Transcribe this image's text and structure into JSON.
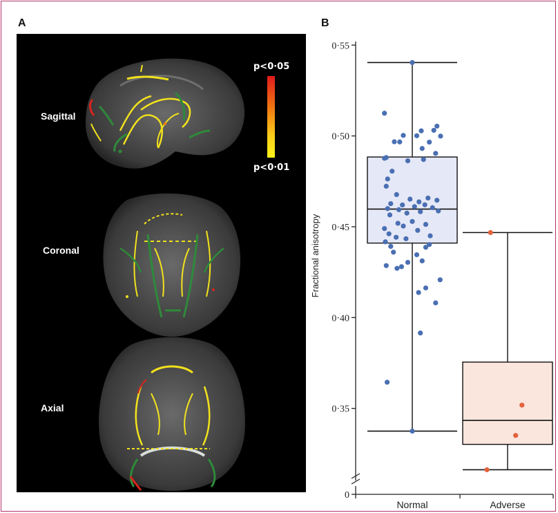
{
  "figure": {
    "panel_a_letter": "A",
    "panel_b_letter": "B",
    "frame_color": "#b4336b"
  },
  "brain_panel": {
    "views": [
      "Sagittal",
      "Coronal",
      "Axial"
    ],
    "colorbar_top_label": "p<0·05",
    "colorbar_bottom_label": "p<0·01",
    "colorbar_colors": [
      "#e01b1b",
      "#f07a12",
      "#ffd21a",
      "#fff21a"
    ],
    "overlay_colors": {
      "significant": "#f2e21c",
      "skeleton": "#2e8a3a",
      "highly_significant": "#d8241c"
    }
  },
  "chart_data": {
    "type": "box",
    "title": "",
    "xlabel": "",
    "ylabel": "Fractional anisotropy",
    "ylim": [
      0.316,
      0.552
    ],
    "axis_break": true,
    "yticks": [
      {
        "value": 0.35,
        "label": "0·35"
      },
      {
        "value": 0.4,
        "label": "0·40"
      },
      {
        "value": 0.45,
        "label": "0·45"
      },
      {
        "value": 0.5,
        "label": "0·50"
      },
      {
        "value": 0.55,
        "label": "0·55"
      }
    ],
    "zero_label": "0",
    "categories": [
      "Normal",
      "Adverse"
    ],
    "groups": [
      {
        "category": "Normal",
        "box_fill": "#e5e8f6",
        "point_color": "#4a6fb3",
        "whisker_low": 0.3375,
        "q1": 0.441,
        "median": 0.4597,
        "q3": 0.4884,
        "whisker_high": 0.5404,
        "points": [
          0.5404,
          0.5125,
          0.5054,
          0.5031,
          0.5028,
          0.5003,
          0.4999,
          0.5001,
          0.4968,
          0.4967,
          0.4966,
          0.4931,
          0.4904,
          0.4881,
          0.4877,
          0.487,
          0.4863,
          0.4806,
          0.4763,
          0.4723,
          0.4677,
          0.4658,
          0.4652,
          0.4646,
          0.4637,
          0.4627,
          0.4621,
          0.462,
          0.4611,
          0.4605,
          0.46,
          0.4594,
          0.4587,
          0.4583,
          0.4575,
          0.4565,
          0.4529,
          0.4519,
          0.4513,
          0.4504,
          0.449,
          0.448,
          0.4461,
          0.445,
          0.4442,
          0.4434,
          0.4417,
          0.4402,
          0.4392,
          0.4387,
          0.436,
          0.4346,
          0.4312,
          0.4304,
          0.4286,
          0.428,
          0.4271,
          0.4208,
          0.4163,
          0.4138,
          0.4081,
          0.3915,
          0.3644,
          0.3375
        ],
        "jitter": [
          0.0,
          -0.62,
          0.55,
          0.48,
          0.2,
          -0.2,
          0.63,
          0.1,
          -0.4,
          -0.28,
          0.38,
          0.22,
          0.52,
          -0.58,
          -0.62,
          0.25,
          -0.1,
          -0.45,
          -0.55,
          -0.58,
          -0.35,
          0.35,
          -0.05,
          0.55,
          0.15,
          -0.48,
          0.28,
          -0.22,
          0.05,
          0.45,
          -0.55,
          -0.3,
          0.58,
          0.18,
          -0.12,
          -0.5,
          0.0,
          -0.32,
          0.3,
          -0.2,
          -0.62,
          0.12,
          -0.52,
          0.4,
          -0.36,
          -0.14,
          -0.6,
          0.38,
          -0.48,
          0.3,
          -0.42,
          0.1,
          0.22,
          -0.1,
          -0.58,
          -0.24,
          -0.34,
          0.62,
          0.3,
          0.14,
          0.52,
          0.18,
          -0.56,
          0.0
        ]
      },
      {
        "category": "Adverse",
        "box_fill": "#fbe6de",
        "point_color": "#e4623d",
        "whisker_low": 0.3162,
        "q1": 0.3302,
        "median": 0.3434,
        "q3": 0.3755,
        "whisker_high": 0.4468,
        "points": [
          0.4468,
          0.3518,
          0.3351,
          0.3162
        ],
        "jitter": [
          -0.38,
          0.32,
          0.18,
          -0.46
        ]
      }
    ]
  }
}
